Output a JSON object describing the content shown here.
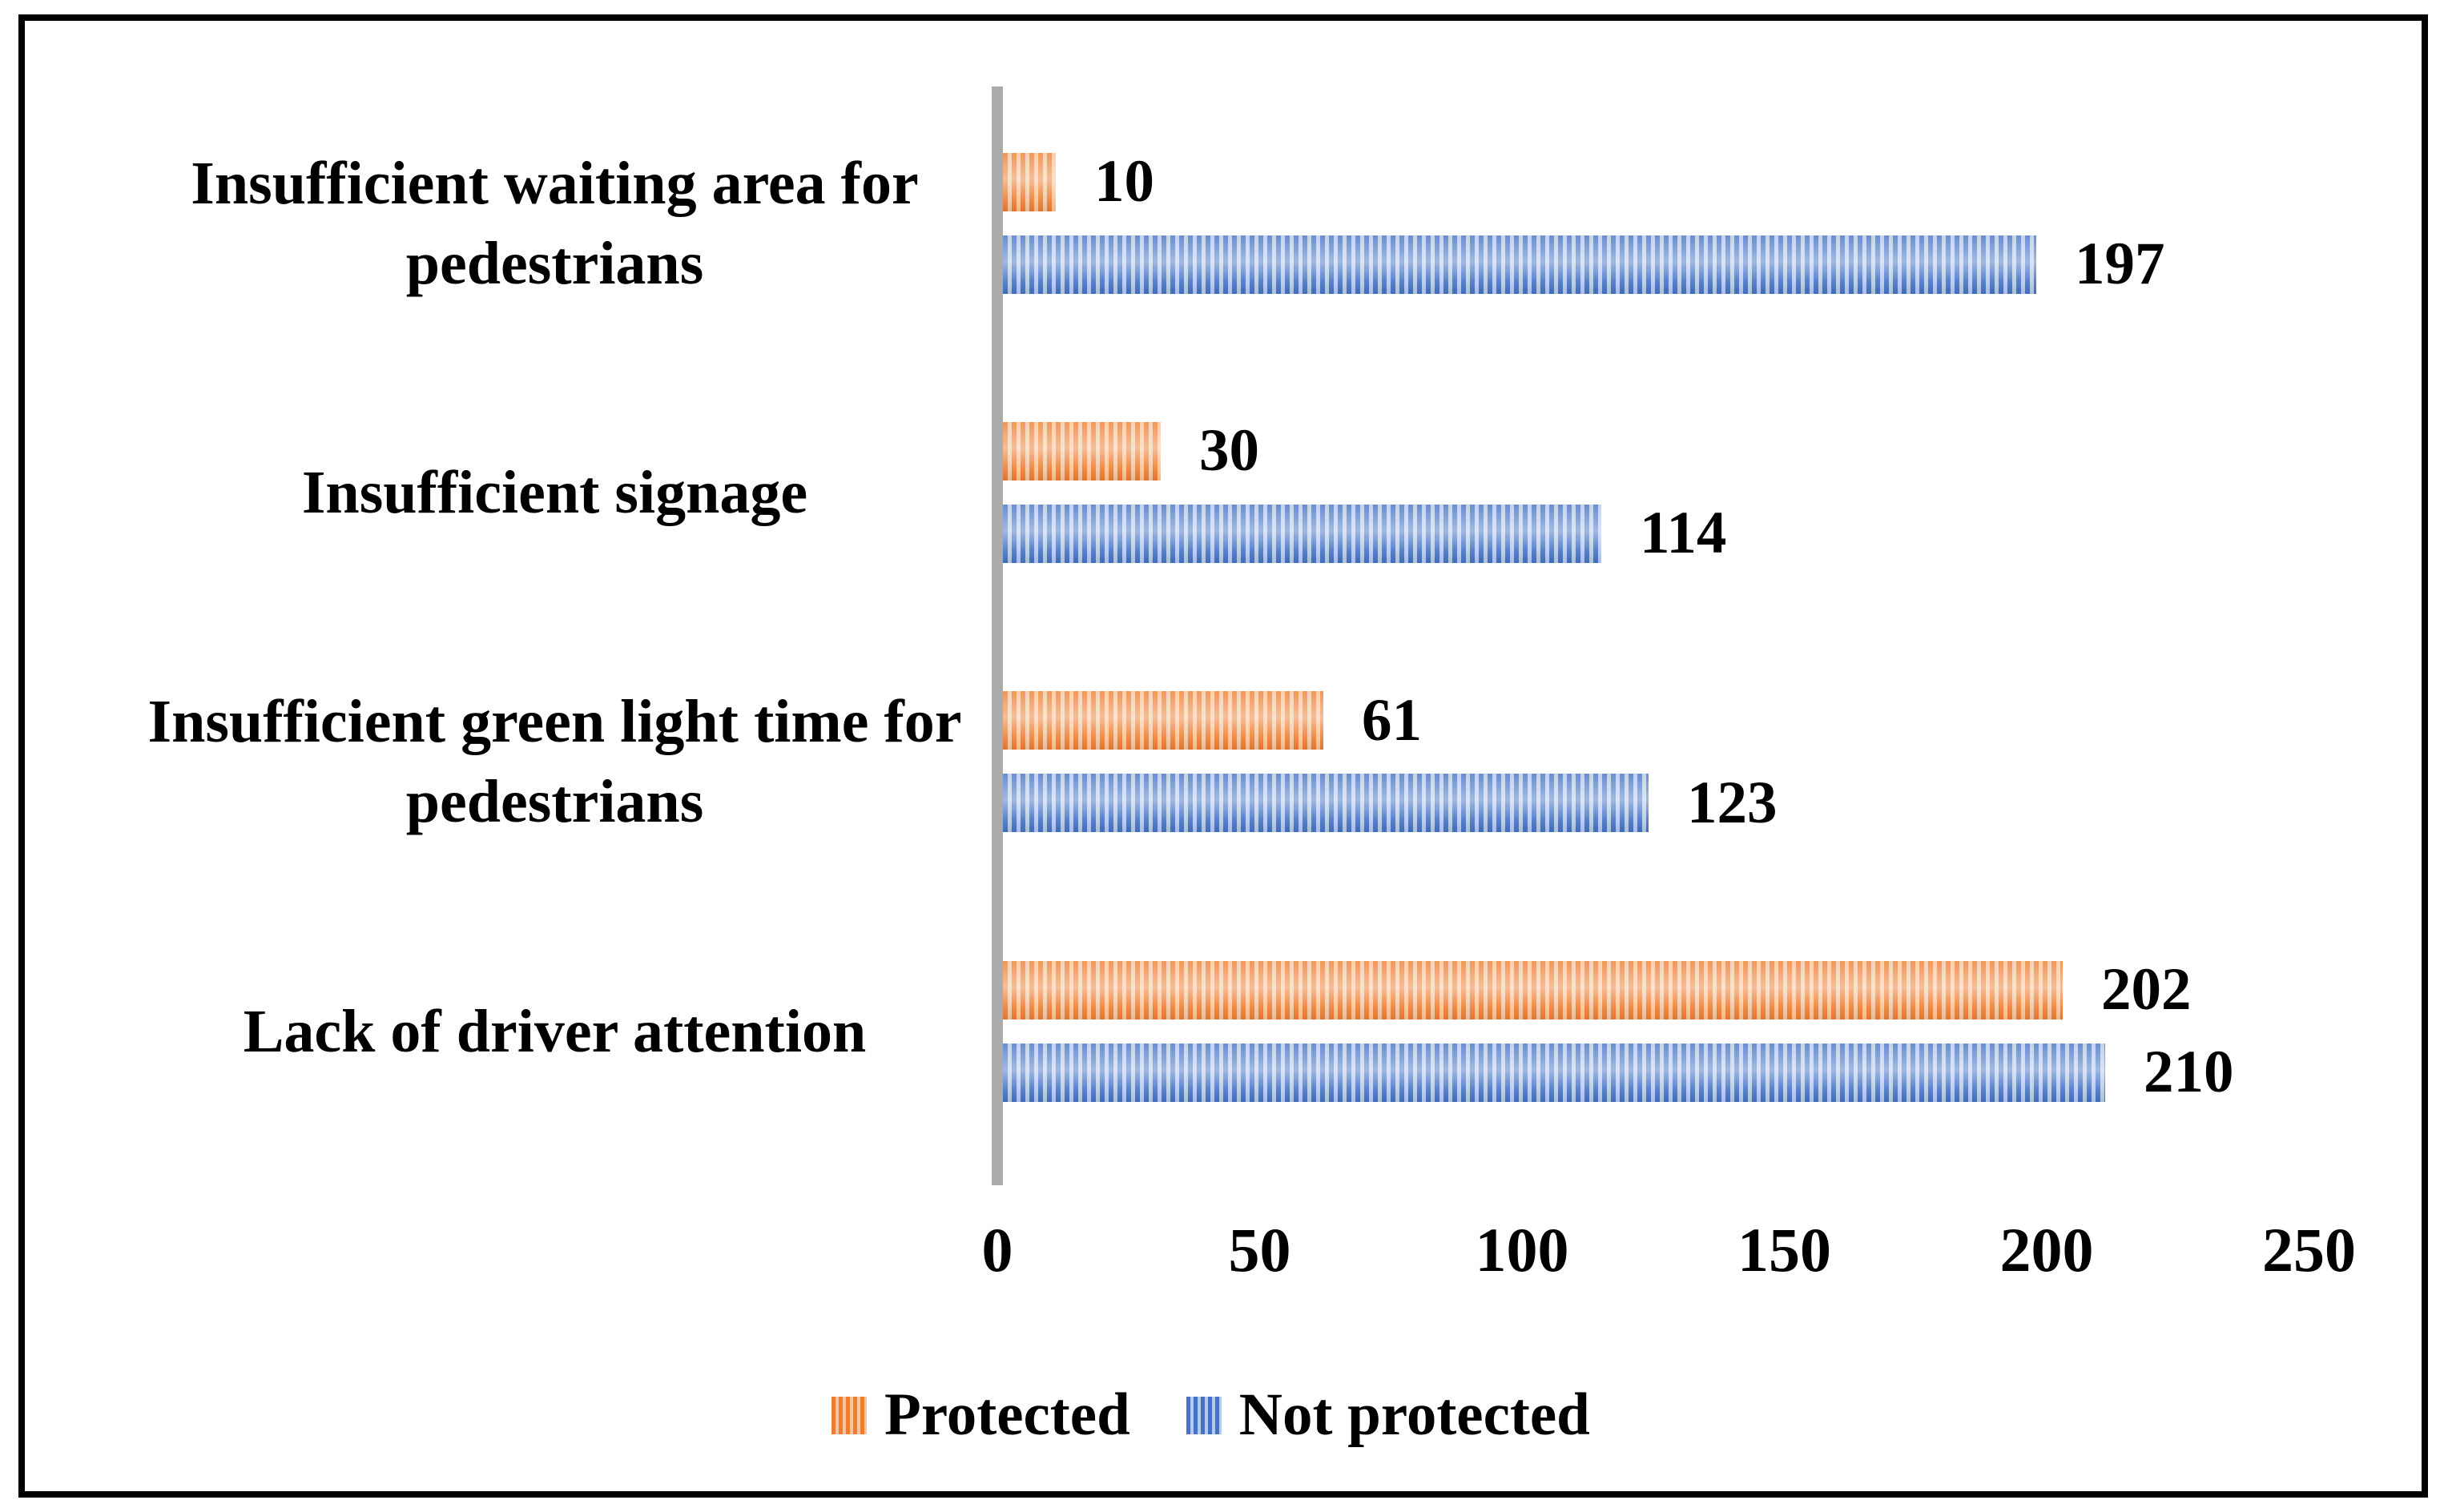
{
  "chart_data": {
    "type": "bar",
    "orientation": "horizontal",
    "title": "",
    "xlabel": "",
    "ylabel": "",
    "xlim": [
      0,
      250
    ],
    "x_ticks": [
      0,
      50,
      100,
      150,
      200,
      250
    ],
    "grid": false,
    "data_labels": true,
    "legend_position": "bottom",
    "categories": [
      {
        "label": "Insufficient waiting area for pedestrians",
        "lines": [
          "Insufficient waiting area for",
          "pedestrians"
        ]
      },
      {
        "label": "Insufficient signage",
        "lines": [
          "Insufficient signage"
        ]
      },
      {
        "label": "Insufficient green light time for pedestrians",
        "lines": [
          "Insufficient green light time for",
          "pedestrians"
        ]
      },
      {
        "label": "Lack of driver attention",
        "lines": [
          "Lack of driver attention"
        ]
      }
    ],
    "series": [
      {
        "name": "Protected",
        "color": "#ED7D31",
        "color_light": "#F8C59C",
        "pattern": "vertical-stripes",
        "values": [
          10,
          30,
          61,
          202
        ]
      },
      {
        "name": "Not protected",
        "color": "#4472C4",
        "color_light": "#B5C9EA",
        "pattern": "vertical-stripes",
        "values": [
          197,
          114,
          123,
          210
        ]
      }
    ],
    "axis_line_color": "#ABABAB",
    "frame_color": "#000000"
  },
  "legend": {
    "items": [
      {
        "label": "Protected",
        "swatch": "orange-striped-swatch"
      },
      {
        "label": "Not protected",
        "swatch": "blue-striped-swatch"
      }
    ]
  }
}
